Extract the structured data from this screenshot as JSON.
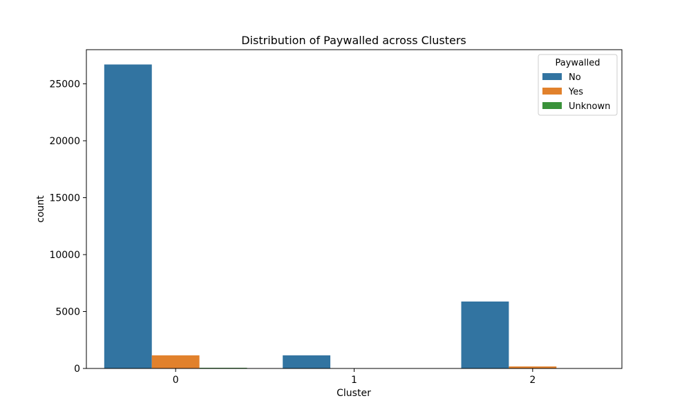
{
  "chart_data": {
    "type": "bar",
    "title": "Distribution of Paywalled across Clusters",
    "xlabel": "Cluster",
    "ylabel": "count",
    "categories": [
      "0",
      "1",
      "2"
    ],
    "series": [
      {
        "name": "No",
        "color": "#3274a1",
        "values": [
          26700,
          1150,
          5880
        ]
      },
      {
        "name": "Yes",
        "color": "#e1812c",
        "values": [
          1150,
          0,
          175
        ]
      },
      {
        "name": "Unknown",
        "color": "#3a923a",
        "values": [
          60,
          0,
          0
        ]
      }
    ],
    "ylim": [
      0,
      28000
    ],
    "yticks": [
      0,
      5000,
      10000,
      15000,
      20000,
      25000
    ],
    "grid": false,
    "legend": {
      "title": "Paywalled",
      "placement": "top-right"
    }
  }
}
